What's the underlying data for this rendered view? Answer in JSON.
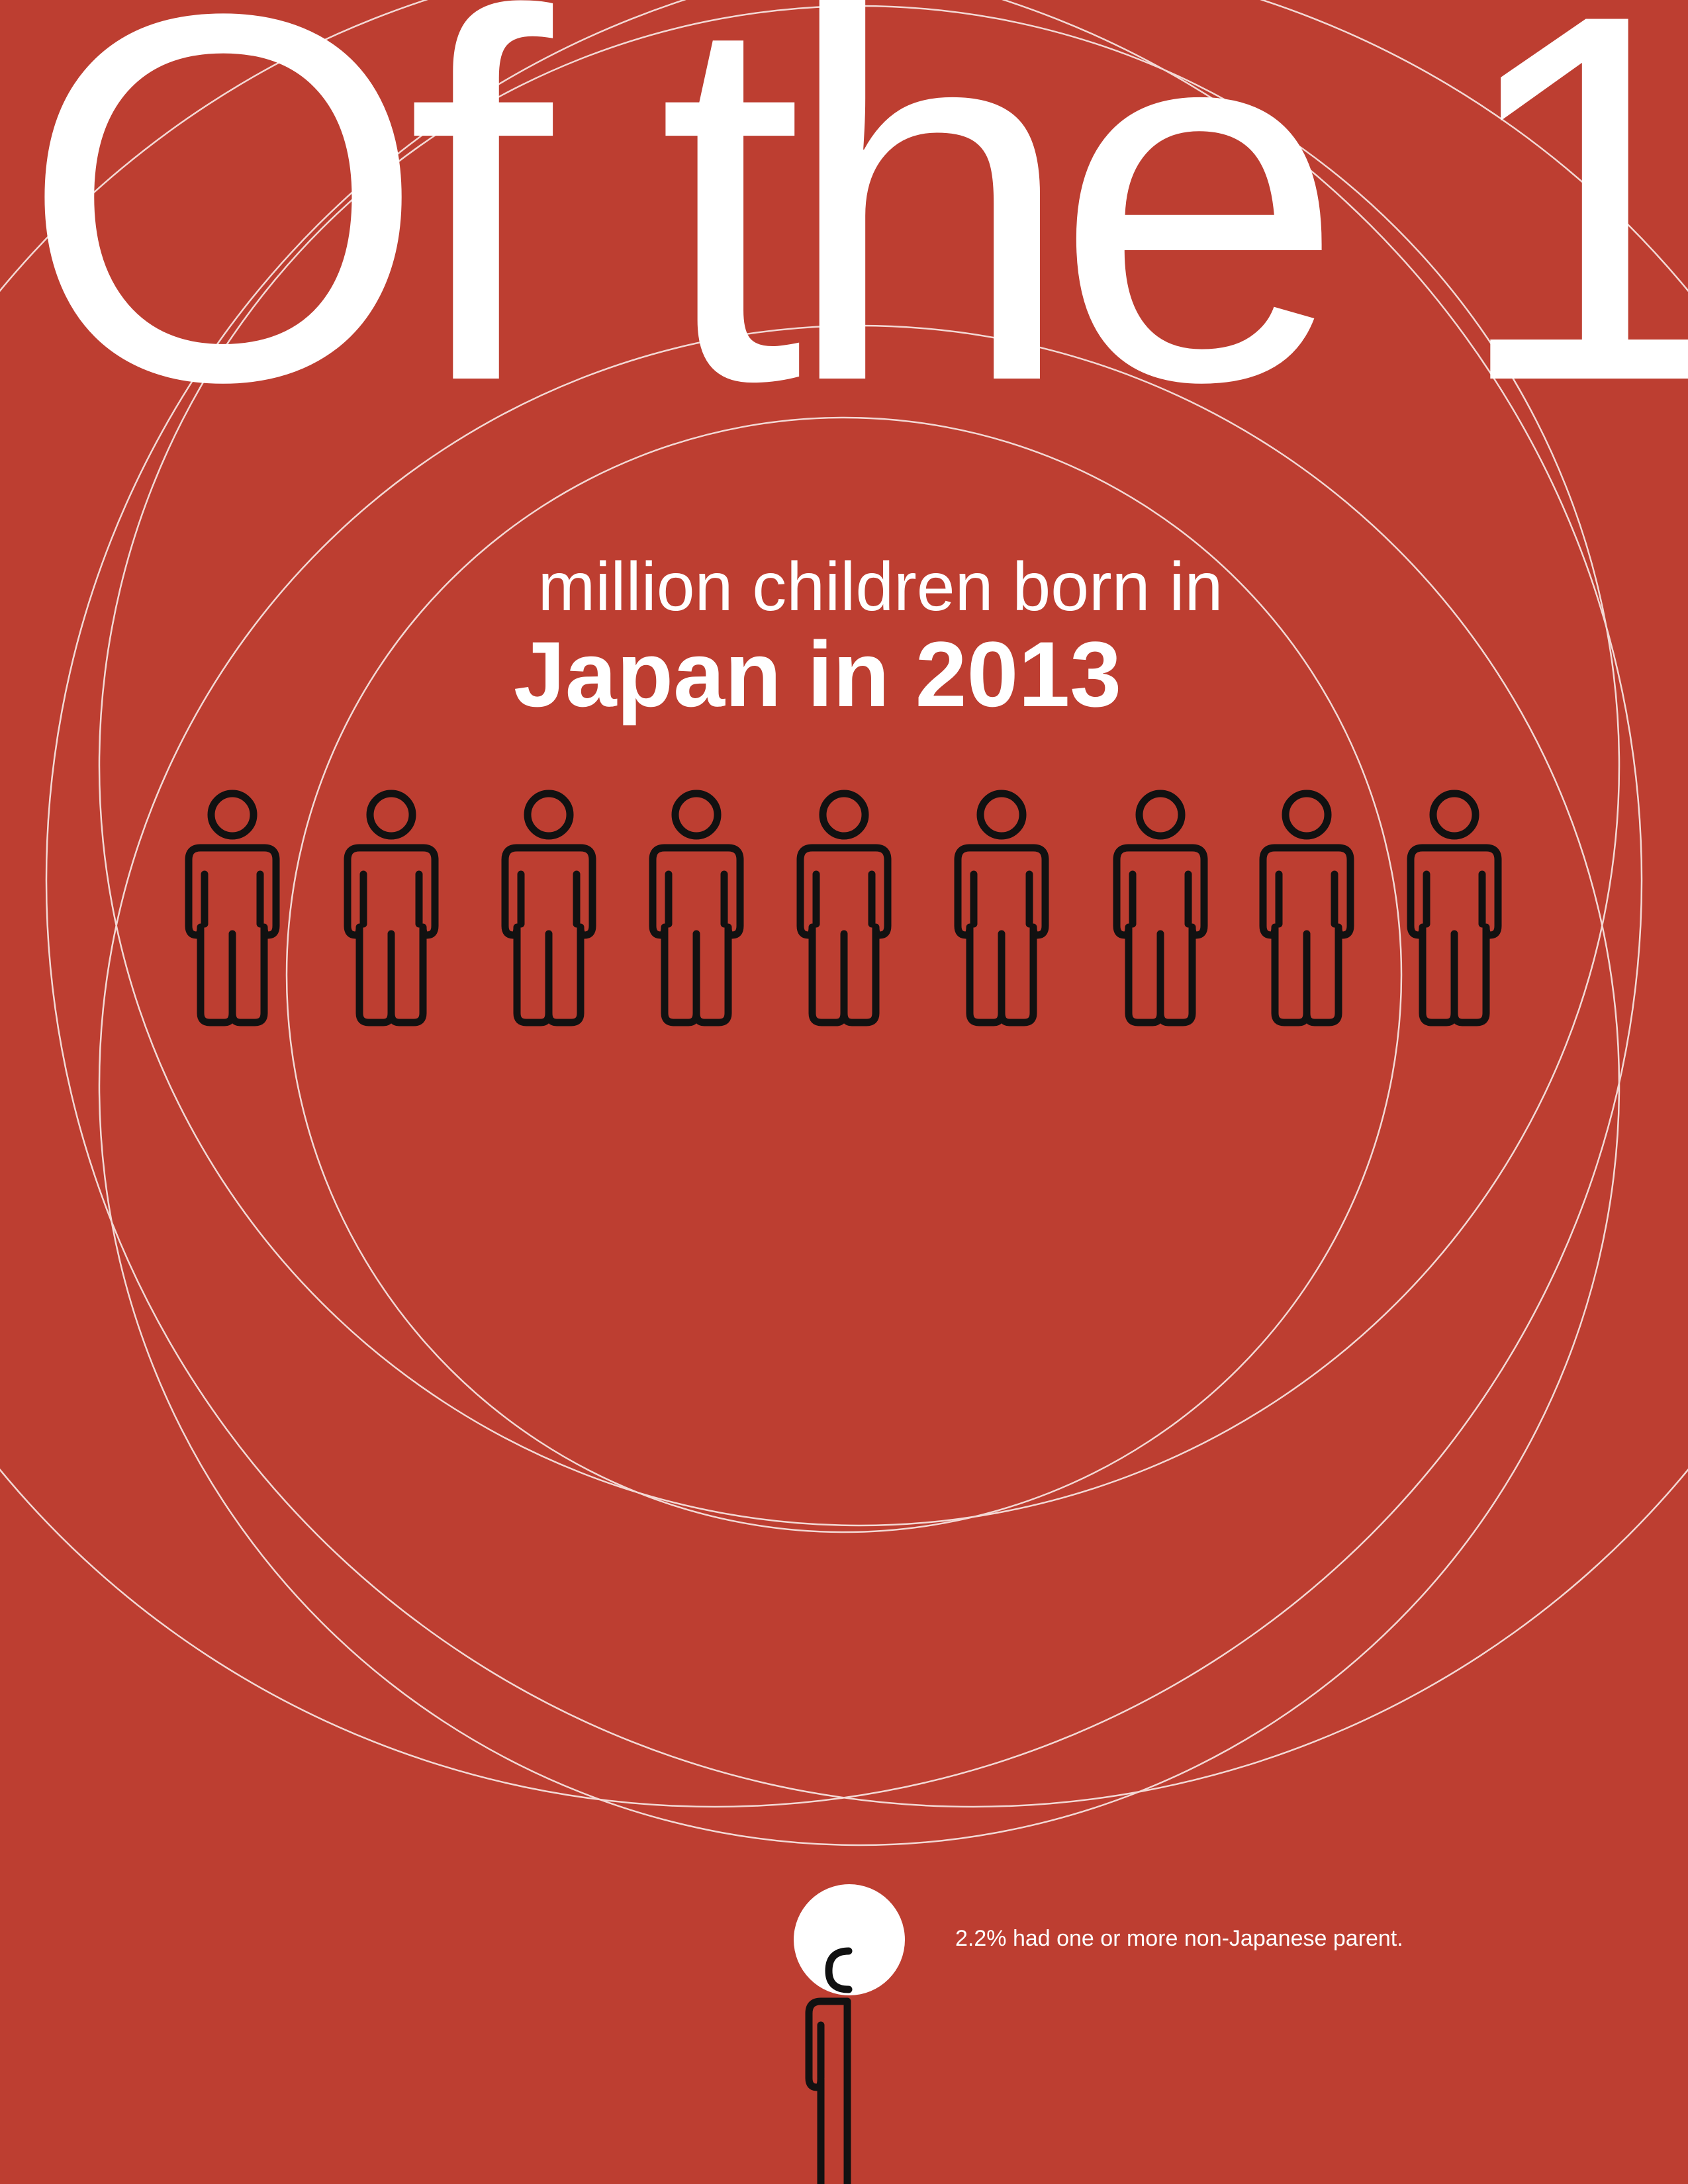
{
  "headline": "Of the 1",
  "subtitle": "million children born in",
  "subtitle_strong": "Japan in 2013",
  "note": "2.2% had one or more non-Japanese parent."
}
